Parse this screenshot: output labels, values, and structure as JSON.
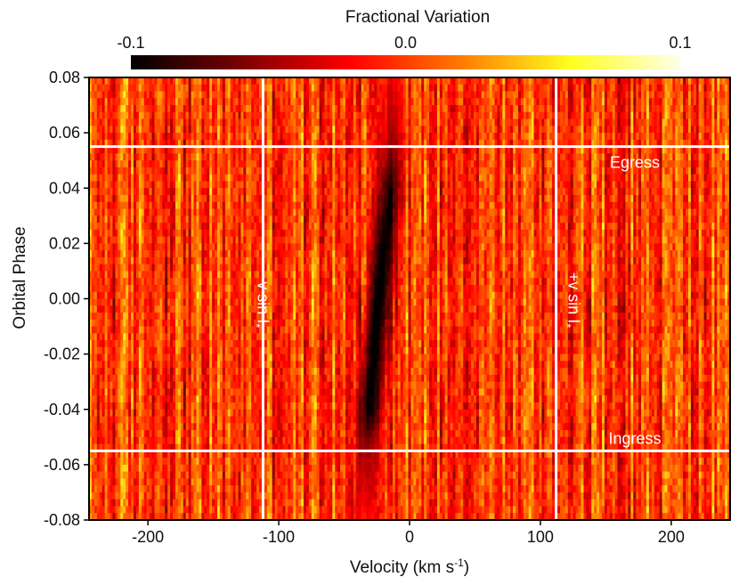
{
  "chart_data": {
    "type": "heatmap",
    "title": "",
    "xlabel": "Velocity (km s",
    "xlabel_sup": "-1",
    "xlabel_close": ")",
    "ylabel": "Orbital Phase",
    "xlim": [
      -245,
      245
    ],
    "ylim": [
      -0.08,
      0.08
    ],
    "x_ticks": [
      -200,
      -100,
      0,
      100,
      200
    ],
    "x_tick_labels": [
      "-200",
      "-100",
      "0",
      "100",
      "200"
    ],
    "y_ticks": [
      0.08,
      0.06,
      0.04,
      0.02,
      0.0,
      -0.02,
      -0.04,
      -0.06,
      -0.08
    ],
    "y_tick_labels": [
      "0.08",
      "0.06",
      "0.04",
      "0.02",
      "0.00",
      "-0.02",
      "-0.04",
      "-0.06",
      "-0.08"
    ],
    "colorbar": {
      "title": "Fractional Variation",
      "range": [
        -0.1,
        0.1
      ],
      "ticks": [
        -0.1,
        0.0,
        0.1
      ],
      "tick_labels": [
        "-0.1",
        "0.0",
        "0.1"
      ],
      "colormap": "hot",
      "colors": [
        "#000000",
        "#7a0000",
        "#ff0000",
        "#ff7a00",
        "#ffff20",
        "#ffffe8"
      ]
    },
    "hlines": [
      {
        "y": 0.055,
        "label": "Egress"
      },
      {
        "y": -0.055,
        "label": "Ingress"
      }
    ],
    "vlines": [
      {
        "x": -112,
        "label": "−v sin I",
        "sub": "*"
      },
      {
        "x": 112,
        "label": "+v sin I",
        "sub": "*"
      }
    ],
    "shadow_track": {
      "description": "dark absorption trail",
      "points": [
        {
          "phase": -0.08,
          "velocity": -34,
          "depth": -0.02
        },
        {
          "phase": -0.055,
          "velocity": -33,
          "depth": -0.05
        },
        {
          "phase": -0.04,
          "velocity": -31,
          "depth": -0.1
        },
        {
          "phase": -0.02,
          "velocity": -27,
          "depth": -0.1
        },
        {
          "phase": 0.0,
          "velocity": -23,
          "depth": -0.1
        },
        {
          "phase": 0.02,
          "velocity": -19,
          "depth": -0.1
        },
        {
          "phase": 0.04,
          "velocity": -15,
          "depth": -0.09
        },
        {
          "phase": 0.055,
          "velocity": -13,
          "depth": -0.05
        },
        {
          "phase": 0.08,
          "velocity": -12,
          "depth": -0.02
        }
      ]
    },
    "background": {
      "mean": 0.0,
      "noise_amplitude": 0.045,
      "columns": 245,
      "rows": 64
    }
  }
}
